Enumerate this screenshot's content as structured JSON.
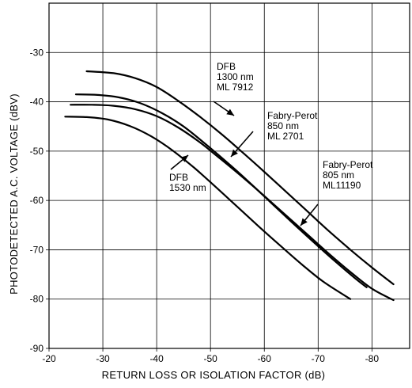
{
  "chart_data": {
    "type": "line",
    "title": "",
    "xlabel": "RETURN  LOSS OR ISOLATION FACTOR  (dB)",
    "ylabel": "PHOTODETECTED  A.C. VOLTAGE  (dBV)",
    "xlim": [
      -20,
      -87
    ],
    "ylim": [
      -90,
      -20
    ],
    "x_ticks": [
      "-20",
      "-30",
      "-40",
      "-50",
      "-60",
      "-70",
      "-80"
    ],
    "y_ticks": [
      "-90",
      "-80",
      "-70",
      "-60",
      "-50",
      "-40",
      "-30"
    ],
    "x_tick_values": [
      -20,
      -30,
      -40,
      -50,
      -60,
      -70,
      -80
    ],
    "y_tick_values": [
      -90,
      -80,
      -70,
      -60,
      -50,
      -40,
      -30
    ],
    "grid": true,
    "series": [
      {
        "name": "DFB 1300 nm ML 7912",
        "x": [
          -27.0,
          -32,
          -36,
          -40,
          -44,
          -48,
          -52,
          -56,
          -60,
          -64,
          -68,
          -72,
          -76,
          -80,
          -84
        ],
        "y": [
          -33.8,
          -34.2,
          -35.2,
          -37.0,
          -39.8,
          -43.0,
          -46.5,
          -50.3,
          -54.2,
          -58.2,
          -62.2,
          -66.2,
          -70.0,
          -73.6,
          -77.0
        ]
      },
      {
        "name": "Fabry-Perot 850 nm ML 2701",
        "x": [
          -25.0,
          -29,
          -33,
          -37,
          -41,
          -45,
          -49,
          -53,
          -57,
          -61,
          -65,
          -69,
          -73,
          -77,
          -79
        ],
        "y": [
          -38.5,
          -38.6,
          -39.1,
          -40.3,
          -42.3,
          -45.0,
          -48.5,
          -52.2,
          -56.1,
          -60.2,
          -64.3,
          -68.3,
          -72.2,
          -75.9,
          -77.6
        ]
      },
      {
        "name": "Fabry-Perot 805 nm ML11190",
        "x": [
          -24.0,
          -28,
          -32,
          -36,
          -40,
          -44,
          -48,
          -52,
          -56,
          -60,
          -64,
          -68,
          -72,
          -76,
          -80,
          -84
        ],
        "y": [
          -40.6,
          -40.6,
          -40.8,
          -41.5,
          -42.9,
          -45.2,
          -48.2,
          -51.7,
          -55.3,
          -59.1,
          -63.0,
          -66.9,
          -70.8,
          -74.5,
          -77.9,
          -80.2
        ]
      },
      {
        "name": "DFB 1530 nm",
        "x": [
          -23.0,
          -27,
          -31,
          -35,
          -39,
          -43,
          -47,
          -51,
          -55,
          -59,
          -63,
          -67,
          -71,
          -76
        ],
        "y": [
          -43.0,
          -43.1,
          -43.6,
          -44.9,
          -47.0,
          -49.9,
          -53.4,
          -57.3,
          -61.3,
          -65.3,
          -69.2,
          -73.0,
          -76.5,
          -80.0
        ]
      }
    ],
    "annotations": [
      {
        "lines": [
          "DFB",
          "1300 nm",
          "ML 7912"
        ]
      },
      {
        "lines": [
          "Fabry-Perot",
          "850 nm",
          "ML 2701"
        ]
      },
      {
        "lines": [
          "Fabry-Perot",
          "805 nm",
          "ML11190"
        ]
      },
      {
        "lines": [
          "DFB",
          "1530 nm"
        ]
      }
    ]
  }
}
